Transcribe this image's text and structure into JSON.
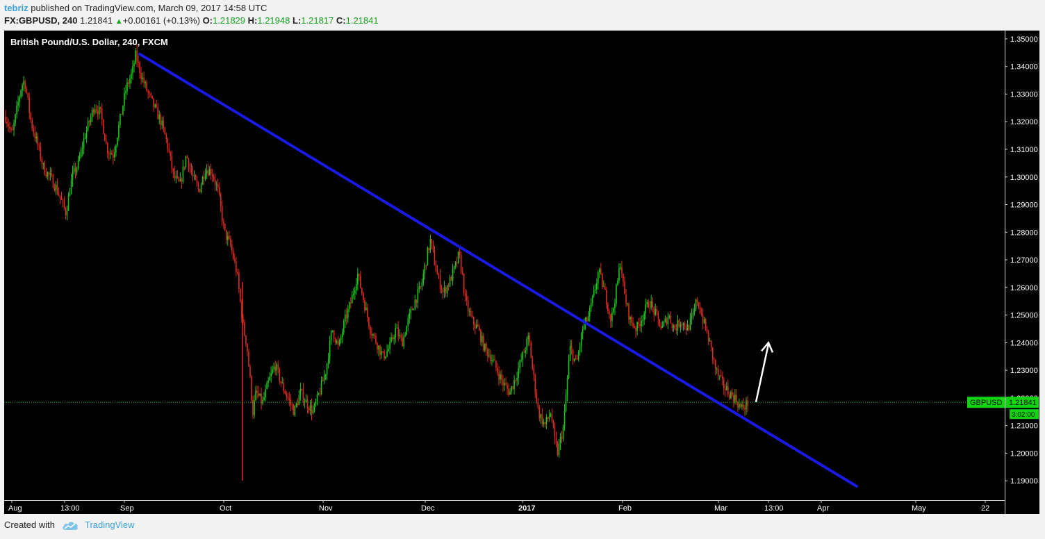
{
  "header": {
    "author": "tebriz",
    "published_text": "published on TradingView.com, March 09, 2017 14:58 UTC",
    "symbol": "FX:GBPUSD, 240",
    "last": "1.21841",
    "arrow": "▲",
    "change": "+0.00161 (+0.13%)",
    "o_label": "O:",
    "o_value": "1.21829",
    "h_label": "H:",
    "h_value": "1.21948",
    "l_label": "L:",
    "l_value": "1.21817",
    "c_label": "C:",
    "c_value": "1.21841"
  },
  "footer": {
    "created_with": "Created with",
    "brand": "TradingView",
    "logo_icon": "tradingview-cloud-icon"
  },
  "colors": {
    "background": "#000000",
    "up_candle": "#1ec51e",
    "down_candle": "#e02a1f",
    "trendline": "#1a1ae6",
    "annotation_arrow": "#ffffff",
    "last_price_line": "#1ec51e",
    "last_price_tag": "#11d411"
  },
  "chart_data": {
    "type": "candlestick",
    "title": "British Pound/U.S. Dollar, 240, FXCM",
    "symbol": "GBPUSD",
    "timeframe": "240",
    "ylim": [
      1.183,
      1.353
    ],
    "y_ticks": [
      "1.35000",
      "1.34000",
      "1.33000",
      "1.32000",
      "1.31000",
      "1.30000",
      "1.29000",
      "1.28000",
      "1.27000",
      "1.26000",
      "1.25000",
      "1.24000",
      "1.23000",
      "1.22000",
      "1.21000",
      "1.20000",
      "1.19000"
    ],
    "x_ticks": [
      "Aug",
      "13:00",
      "Sep",
      "Oct",
      "Nov",
      "Dec",
      "2017",
      "Feb",
      "Mar",
      "13:00",
      "Apr",
      "May",
      "22"
    ],
    "x_tick_bold": [
      false,
      false,
      false,
      false,
      false,
      false,
      true,
      false,
      false,
      false,
      false,
      false,
      false
    ],
    "last_price_label": "GBPUSD",
    "last_price": "1.21841",
    "countdown": "3:02:00",
    "price_path": [
      [
        0,
        1.322
      ],
      [
        2,
        1.315
      ],
      [
        4,
        1.327
      ],
      [
        5,
        1.333
      ],
      [
        6,
        1.335
      ],
      [
        8,
        1.32
      ],
      [
        10,
        1.312
      ],
      [
        12,
        1.303
      ],
      [
        14,
        1.3
      ],
      [
        16,
        1.296
      ],
      [
        18,
        1.29
      ],
      [
        19,
        1.287
      ],
      [
        21,
        1.3
      ],
      [
        23,
        1.305
      ],
      [
        25,
        1.315
      ],
      [
        27,
        1.322
      ],
      [
        28,
        1.326
      ],
      [
        30,
        1.323
      ],
      [
        32,
        1.31
      ],
      [
        34,
        1.308
      ],
      [
        36,
        1.32
      ],
      [
        38,
        1.332
      ],
      [
        40,
        1.338
      ],
      [
        41,
        1.344
      ],
      [
        43,
        1.336
      ],
      [
        45,
        1.33
      ],
      [
        47,
        1.325
      ],
      [
        49,
        1.32
      ],
      [
        51,
        1.312
      ],
      [
        53,
        1.3
      ],
      [
        55,
        1.297
      ],
      [
        57,
        1.308
      ],
      [
        59,
        1.3
      ],
      [
        61,
        1.295
      ],
      [
        63,
        1.303
      ],
      [
        65,
        1.302
      ],
      [
        67,
        1.295
      ],
      [
        69,
        1.28
      ],
      [
        71,
        1.275
      ],
      [
        73,
        1.265
      ],
      [
        74,
        1.255
      ],
      [
        75,
        1.245
      ],
      [
        76,
        1.24
      ],
      [
        77,
        1.228
      ],
      [
        78,
        1.215
      ],
      [
        79,
        1.222
      ],
      [
        81,
        1.218
      ],
      [
        83,
        1.226
      ],
      [
        85,
        1.232
      ],
      [
        87,
        1.225
      ],
      [
        89,
        1.22
      ],
      [
        91,
        1.215
      ],
      [
        93,
        1.222
      ],
      [
        95,
        1.218
      ],
      [
        97,
        1.215
      ],
      [
        99,
        1.222
      ],
      [
        101,
        1.23
      ],
      [
        103,
        1.245
      ],
      [
        105,
        1.238
      ],
      [
        107,
        1.248
      ],
      [
        109,
        1.255
      ],
      [
        111,
        1.265
      ],
      [
        113,
        1.255
      ],
      [
        115,
        1.245
      ],
      [
        117,
        1.24
      ],
      [
        119,
        1.235
      ],
      [
        121,
        1.238
      ],
      [
        123,
        1.245
      ],
      [
        125,
        1.24
      ],
      [
        127,
        1.248
      ],
      [
        129,
        1.255
      ],
      [
        131,
        1.26
      ],
      [
        133,
        1.272
      ],
      [
        134,
        1.277
      ],
      [
        136,
        1.265
      ],
      [
        138,
        1.258
      ],
      [
        140,
        1.262
      ],
      [
        142,
        1.268
      ],
      [
        143,
        1.272
      ],
      [
        144,
        1.265
      ],
      [
        145,
        1.255
      ],
      [
        147,
        1.248
      ],
      [
        149,
        1.245
      ],
      [
        151,
        1.238
      ],
      [
        153,
        1.235
      ],
      [
        155,
        1.23
      ],
      [
        157,
        1.225
      ],
      [
        159,
        1.222
      ],
      [
        161,
        1.228
      ],
      [
        163,
        1.235
      ],
      [
        165,
        1.242
      ],
      [
        166,
        1.232
      ],
      [
        168,
        1.215
      ],
      [
        170,
        1.21
      ],
      [
        172,
        1.215
      ],
      [
        173,
        1.205
      ],
      [
        174,
        1.2
      ],
      [
        176,
        1.21
      ],
      [
        177,
        1.225
      ],
      [
        178,
        1.238
      ],
      [
        180,
        1.232
      ],
      [
        182,
        1.245
      ],
      [
        184,
        1.25
      ],
      [
        186,
        1.26
      ],
      [
        187,
        1.266
      ],
      [
        189,
        1.258
      ],
      [
        191,
        1.248
      ],
      [
        193,
        1.262
      ],
      [
        194,
        1.27
      ],
      [
        195,
        1.258
      ],
      [
        197,
        1.248
      ],
      [
        199,
        1.245
      ],
      [
        201,
        1.25
      ],
      [
        203,
        1.255
      ],
      [
        205,
        1.25
      ],
      [
        207,
        1.245
      ],
      [
        209,
        1.25
      ],
      [
        211,
        1.245
      ],
      [
        213,
        1.248
      ],
      [
        215,
        1.245
      ],
      [
        217,
        1.25
      ],
      [
        218,
        1.256
      ],
      [
        220,
        1.248
      ],
      [
        222,
        1.24
      ],
      [
        224,
        1.23
      ],
      [
        226,
        1.225
      ],
      [
        228,
        1.222
      ],
      [
        230,
        1.22
      ],
      [
        232,
        1.216
      ],
      [
        234,
        1.218
      ]
    ],
    "trendline": {
      "start": [
        "Sep 06",
        1.3445
      ],
      "end": [
        "Apr 20",
        1.188
      ]
    },
    "annotation": {
      "type": "arrow",
      "direction": "up",
      "from": [
        "Mar 11",
        1.2185
      ],
      "to": [
        "Mar 13",
        1.24
      ]
    }
  }
}
